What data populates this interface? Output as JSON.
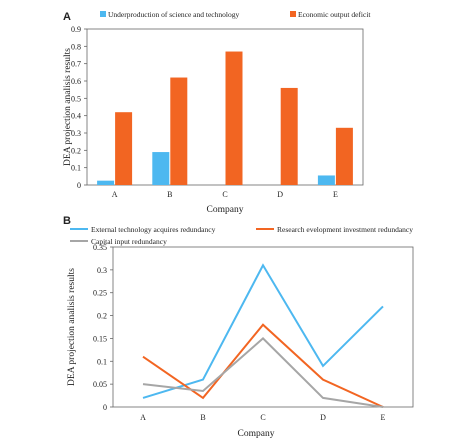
{
  "chart_data": [
    {
      "panel": "A",
      "type": "bar",
      "categories": [
        "A",
        "B",
        "C",
        "D",
        "E"
      ],
      "series": [
        {
          "name": "Underproduction of science and technology",
          "color": "#4DB8F0",
          "values": [
            0.025,
            0.19,
            0,
            0,
            0.055
          ]
        },
        {
          "name": "Economic output deficit",
          "color": "#F26522",
          "values": [
            0.42,
            0.62,
            0.77,
            0.56,
            0.33
          ]
        }
      ],
      "xlabel": "Company",
      "ylabel": "DEA projection analisis results",
      "ylim": [
        0,
        0.9
      ],
      "yticks": [
        "0",
        "0.1",
        "0.2",
        "0.3",
        "0.4",
        "0.5",
        "0.6",
        "0.7",
        "0.8",
        "0.9"
      ],
      "grid": false,
      "legend_position": "top"
    },
    {
      "panel": "B",
      "type": "line",
      "categories": [
        "A",
        "B",
        "C",
        "D",
        "E"
      ],
      "series": [
        {
          "name": "External technology acquires redundancy",
          "color": "#4DB8F0",
          "values": [
            0.02,
            0.06,
            0.31,
            0.09,
            0.22
          ]
        },
        {
          "name": "Research   evelopment investment redundancy",
          "color": "#F26522",
          "values": [
            0.11,
            0.02,
            0.18,
            0.06,
            0.0
          ]
        },
        {
          "name": "Capital input redundancy",
          "color": "#A6A6A6",
          "values": [
            0.05,
            0.035,
            0.15,
            0.02,
            0.0
          ]
        }
      ],
      "xlabel": "Company",
      "ylabel": "DEA projection analisis results",
      "ylim": [
        0,
        0.35
      ],
      "yticks": [
        "0",
        "0.05",
        "0.1",
        "0.15",
        "0.2",
        "0.25",
        "0.3",
        "0.35"
      ],
      "grid": false,
      "legend_position": "top"
    }
  ]
}
